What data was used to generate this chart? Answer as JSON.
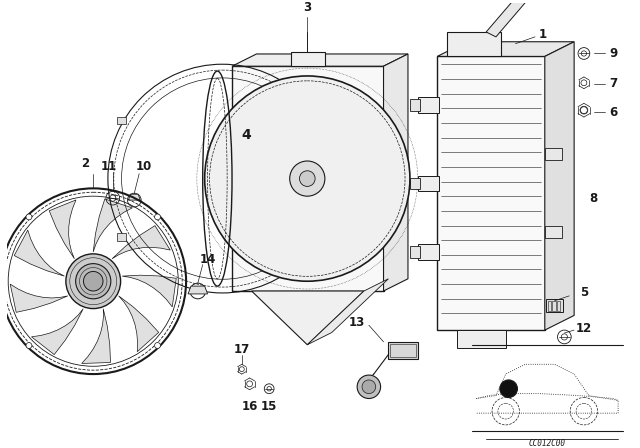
{
  "background_color": "#ffffff",
  "line_color": "#1a1a1a",
  "fig_width": 6.4,
  "fig_height": 4.48,
  "dpi": 100,
  "code_text": "CC012C00"
}
